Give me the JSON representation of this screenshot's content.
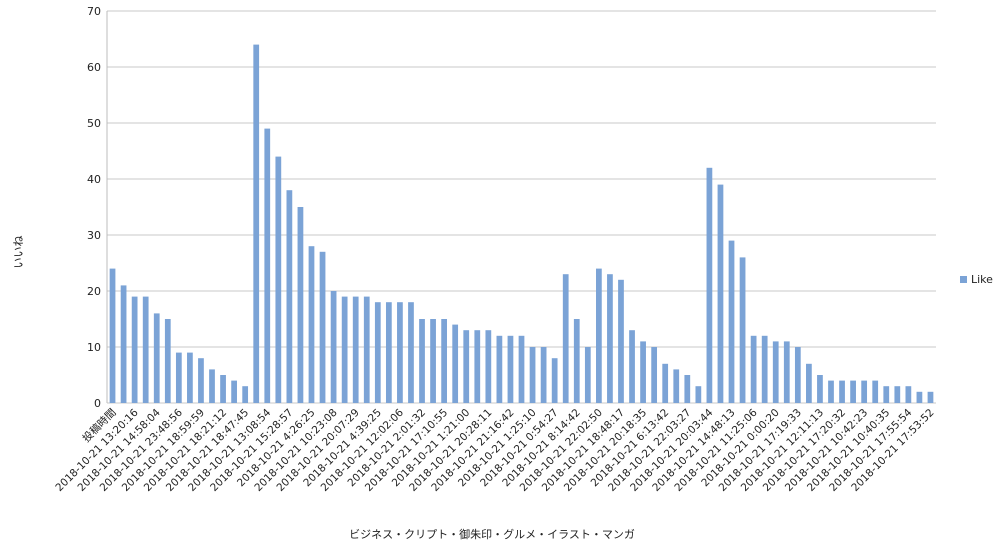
{
  "chart_data": {
    "type": "bar",
    "title": "",
    "xlabel": "ビジネス・クリプト・御朱印・グルメ・イラスト・マンガ",
    "ylabel": "いいね",
    "ylim": [
      0,
      70
    ],
    "yticks": [
      0,
      10,
      20,
      30,
      40,
      50,
      60,
      70
    ],
    "grid": true,
    "legend_position": "right",
    "series_color": "#7ba3d6",
    "xtick_labels": [
      "投稿時間",
      "2018-10-21 13:20:16",
      "2018-10-21 14:58:04",
      "2018-10-21 23:48:56",
      "2018-10-21 18:59:59",
      "2018-10-21 18:21:12",
      "2018-10-21 18:47:45",
      "2018-10-21 13:08:54",
      "2018-10-21 15:28:57",
      "2018-10-21 4:26:25",
      "2018-10-21 10:23:08",
      "2018-10-21 20:07:29",
      "2018-10-21 4:39:25",
      "2018-10-21 12:02:06",
      "2018-10-21 2:01:32",
      "2018-10-21 17:10:55",
      "2018-10-21 1:21:00",
      "2018-10-21 20:28:11",
      "2018-10-21 21:16:42",
      "2018-10-21 1:25:10",
      "2018-10-21 0:54:27",
      "2018-10-21 8:14:42",
      "2018-10-21 22:02:50",
      "2018-10-21 18:48:17",
      "2018-10-21 20:18:35",
      "2018-10-21 6:13:42",
      "2018-10-21 22:03:27",
      "2018-10-21 20:03:44",
      "2018-10-21 14:48:13",
      "2018-10-21 11:25:06",
      "2018-10-21 0:00:20",
      "2018-10-21 17:19:33",
      "2018-10-21 12:11:13",
      "2018-10-21 17:20:32",
      "2018-10-21 10:42:23",
      "2018-10-21 10:40:35",
      "2018-10-21 17:55:54",
      "2018-10-21 17:53:52"
    ],
    "series": [
      {
        "name": "Like",
        "values": [
          24,
          21,
          19,
          19,
          16,
          15,
          9,
          9,
          8,
          6,
          5,
          4,
          3,
          64,
          49,
          44,
          38,
          35,
          28,
          27,
          20,
          19,
          19,
          19,
          18,
          18,
          18,
          18,
          15,
          15,
          15,
          14,
          13,
          13,
          13,
          12,
          12,
          12,
          10,
          10,
          8,
          23,
          15,
          10,
          24,
          23,
          22,
          13,
          11,
          10,
          7,
          6,
          5,
          3,
          42,
          39,
          29,
          26,
          12,
          12,
          11,
          11,
          10,
          7,
          5,
          4,
          4,
          4,
          4,
          4,
          3,
          3,
          3,
          2,
          2
        ]
      }
    ]
  }
}
